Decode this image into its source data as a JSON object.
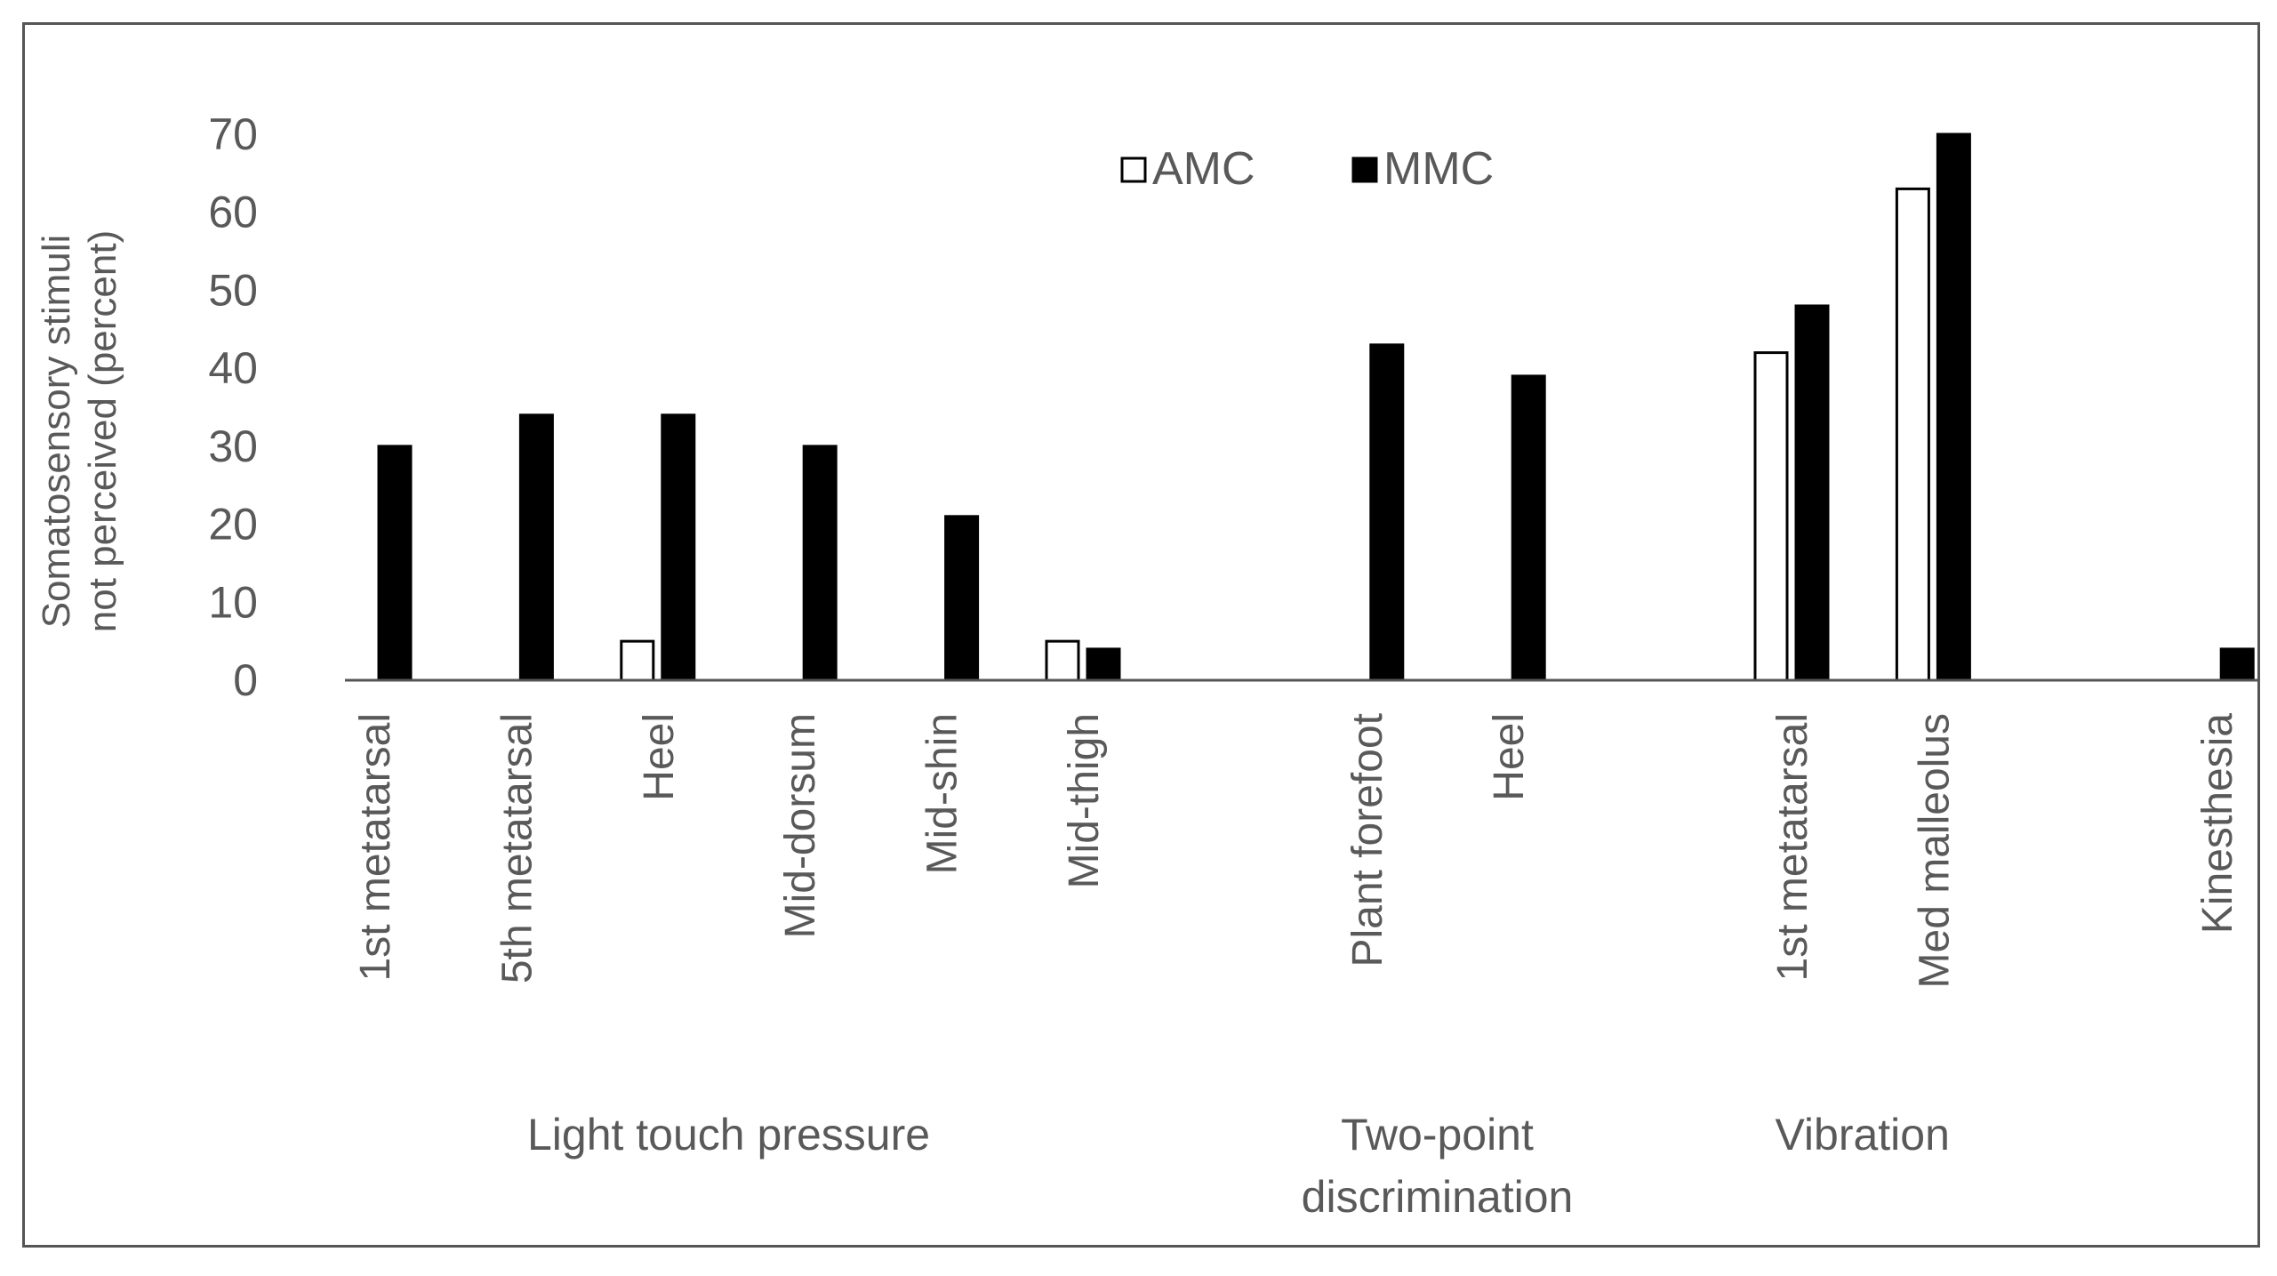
{
  "chart_data": {
    "type": "bar",
    "title": "",
    "ylabel": [
      "Somatosensory stimuli",
      "not perceived (percent)"
    ],
    "xlabel": "",
    "ylim": [
      0,
      70
    ],
    "yticks": [
      0,
      10,
      20,
      30,
      40,
      50,
      60,
      70
    ],
    "grid": false,
    "legend_position": "top-center",
    "groups": [
      {
        "label": [
          "Light touch pressure"
        ],
        "categories": [
          "1st metatarsal",
          "5th metatarsal",
          "Heel",
          "Mid-dorsum",
          "Mid-shin",
          "Mid-thigh"
        ]
      },
      {
        "label": [
          "Two-point",
          "discrimination"
        ],
        "categories": [
          "Plant forefoot",
          "Heel"
        ]
      },
      {
        "label": [
          "Vibration"
        ],
        "categories": [
          "1st metatarsal",
          "Med malleolus"
        ]
      },
      {
        "label": [
          ""
        ],
        "categories": [
          "Kinesthesia"
        ]
      }
    ],
    "series": [
      {
        "name": "AMC",
        "color": "#ffffff",
        "values": [
          null,
          null,
          5,
          null,
          null,
          5,
          null,
          null,
          42,
          63,
          null
        ]
      },
      {
        "name": "MMC",
        "color": "#000000",
        "values": [
          30,
          34,
          34,
          30,
          21,
          4,
          43,
          39,
          48,
          70,
          4
        ]
      }
    ]
  }
}
